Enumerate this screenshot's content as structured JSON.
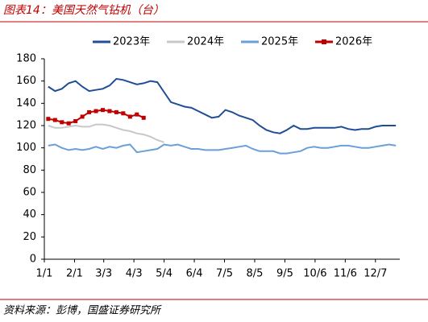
{
  "chart_data": {
    "type": "line",
    "title": "图表14：美国天然气钻机（台）",
    "source": "资料来源：彭博，国盛证券研究所",
    "x": [
      4,
      11,
      18,
      25,
      32,
      39,
      46,
      53,
      60,
      67,
      74,
      81,
      88,
      95,
      102,
      109,
      116,
      123,
      130,
      137,
      144,
      151,
      158,
      165,
      172,
      179,
      186,
      193,
      200,
      207,
      214,
      221,
      228,
      235,
      242,
      249,
      256,
      263,
      270,
      277,
      284,
      291,
      298,
      305,
      312,
      319,
      326,
      333,
      340,
      347,
      354,
      361
    ],
    "xlim": [
      0,
      365
    ],
    "xticks": [
      {
        "value": 0,
        "label": "1/1"
      },
      {
        "value": 31,
        "label": "2/1"
      },
      {
        "value": 61,
        "label": "3/3"
      },
      {
        "value": 92,
        "label": "4/3"
      },
      {
        "value": 123,
        "label": "5/4"
      },
      {
        "value": 154,
        "label": "6/4"
      },
      {
        "value": 185,
        "label": "7/5"
      },
      {
        "value": 216,
        "label": "8/5"
      },
      {
        "value": 247,
        "label": "9/5"
      },
      {
        "value": 278,
        "label": "10/6"
      },
      {
        "value": 309,
        "label": "11/6"
      },
      {
        "value": 340,
        "label": "12/7"
      }
    ],
    "ylim": [
      0,
      180
    ],
    "yticks": [
      0,
      20,
      40,
      60,
      80,
      100,
      120,
      140,
      160,
      180
    ],
    "grid": false,
    "legend": "top",
    "series": [
      {
        "name": "2023年",
        "color": "#1f4e96",
        "values": [
          155,
          151,
          153,
          158,
          160,
          155,
          151,
          152,
          153,
          156,
          162,
          161,
          159,
          157,
          158,
          160,
          159,
          150,
          141,
          139,
          137,
          136,
          133,
          130,
          127,
          128,
          134,
          132,
          129,
          127,
          125,
          120,
          116,
          114,
          113,
          116,
          120,
          117,
          117,
          118,
          118,
          118,
          118,
          119,
          117,
          116,
          117,
          117,
          119,
          120,
          120,
          120
        ]
      },
      {
        "name": "2024年",
        "color": "#c8c8c8",
        "values": [
          120,
          118,
          118,
          119,
          120,
          119,
          119,
          121,
          121,
          120,
          118,
          116,
          115,
          113,
          112,
          110,
          107,
          105,
          null,
          null,
          null,
          null,
          null,
          null,
          null,
          null,
          null,
          null,
          null,
          null,
          null,
          null,
          null,
          null,
          null,
          null,
          null,
          null,
          null,
          null,
          null,
          null,
          null,
          null,
          null,
          null,
          null,
          null,
          null,
          null,
          null,
          null
        ]
      },
      {
        "name": "2025年",
        "color": "#6a9fd8",
        "values": [
          102,
          103,
          100,
          98,
          99,
          98,
          99,
          101,
          99,
          101,
          100,
          102,
          103,
          96,
          97,
          98,
          99,
          103,
          102,
          103,
          101,
          99,
          99,
          98,
          98,
          98,
          99,
          100,
          101,
          102,
          99,
          97,
          97,
          97,
          95,
          95,
          96,
          97,
          100,
          101,
          100,
          100,
          101,
          102,
          102,
          101,
          100,
          100,
          101,
          102,
          103,
          102
        ]
      },
      {
        "name": "2026年",
        "color": "#c00000",
        "marker": "square",
        "values": [
          126,
          125,
          123,
          122,
          124,
          128,
          132,
          133,
          134,
          133,
          132,
          131,
          128,
          130,
          127,
          null,
          null,
          null,
          null,
          null,
          null,
          null,
          null,
          null,
          null,
          null,
          null,
          null,
          null,
          null,
          null,
          null,
          null,
          null,
          null,
          null,
          null,
          null,
          null,
          null,
          null,
          null,
          null,
          null,
          null,
          null,
          null,
          null,
          null,
          null,
          null,
          null
        ]
      }
    ]
  }
}
